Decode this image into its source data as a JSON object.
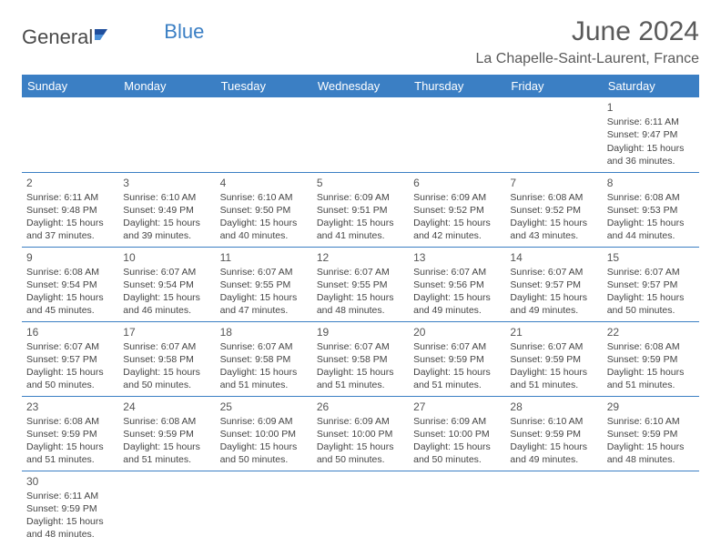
{
  "logo": {
    "part1": "General",
    "part2": "Blue"
  },
  "title": "June 2024",
  "location": "La Chapelle-Saint-Laurent, France",
  "colors": {
    "header_bg": "#3b7fc4",
    "header_text": "#ffffff",
    "border": "#3b7fc4",
    "text": "#444444"
  },
  "weekdays": [
    "Sunday",
    "Monday",
    "Tuesday",
    "Wednesday",
    "Thursday",
    "Friday",
    "Saturday"
  ],
  "weeks": [
    [
      null,
      null,
      null,
      null,
      null,
      null,
      {
        "n": "1",
        "sr": "6:11 AM",
        "ss": "9:47 PM",
        "dl": "15 hours and 36 minutes."
      }
    ],
    [
      {
        "n": "2",
        "sr": "6:11 AM",
        "ss": "9:48 PM",
        "dl": "15 hours and 37 minutes."
      },
      {
        "n": "3",
        "sr": "6:10 AM",
        "ss": "9:49 PM",
        "dl": "15 hours and 39 minutes."
      },
      {
        "n": "4",
        "sr": "6:10 AM",
        "ss": "9:50 PM",
        "dl": "15 hours and 40 minutes."
      },
      {
        "n": "5",
        "sr": "6:09 AM",
        "ss": "9:51 PM",
        "dl": "15 hours and 41 minutes."
      },
      {
        "n": "6",
        "sr": "6:09 AM",
        "ss": "9:52 PM",
        "dl": "15 hours and 42 minutes."
      },
      {
        "n": "7",
        "sr": "6:08 AM",
        "ss": "9:52 PM",
        "dl": "15 hours and 43 minutes."
      },
      {
        "n": "8",
        "sr": "6:08 AM",
        "ss": "9:53 PM",
        "dl": "15 hours and 44 minutes."
      }
    ],
    [
      {
        "n": "9",
        "sr": "6:08 AM",
        "ss": "9:54 PM",
        "dl": "15 hours and 45 minutes."
      },
      {
        "n": "10",
        "sr": "6:07 AM",
        "ss": "9:54 PM",
        "dl": "15 hours and 46 minutes."
      },
      {
        "n": "11",
        "sr": "6:07 AM",
        "ss": "9:55 PM",
        "dl": "15 hours and 47 minutes."
      },
      {
        "n": "12",
        "sr": "6:07 AM",
        "ss": "9:55 PM",
        "dl": "15 hours and 48 minutes."
      },
      {
        "n": "13",
        "sr": "6:07 AM",
        "ss": "9:56 PM",
        "dl": "15 hours and 49 minutes."
      },
      {
        "n": "14",
        "sr": "6:07 AM",
        "ss": "9:57 PM",
        "dl": "15 hours and 49 minutes."
      },
      {
        "n": "15",
        "sr": "6:07 AM",
        "ss": "9:57 PM",
        "dl": "15 hours and 50 minutes."
      }
    ],
    [
      {
        "n": "16",
        "sr": "6:07 AM",
        "ss": "9:57 PM",
        "dl": "15 hours and 50 minutes."
      },
      {
        "n": "17",
        "sr": "6:07 AM",
        "ss": "9:58 PM",
        "dl": "15 hours and 50 minutes."
      },
      {
        "n": "18",
        "sr": "6:07 AM",
        "ss": "9:58 PM",
        "dl": "15 hours and 51 minutes."
      },
      {
        "n": "19",
        "sr": "6:07 AM",
        "ss": "9:58 PM",
        "dl": "15 hours and 51 minutes."
      },
      {
        "n": "20",
        "sr": "6:07 AM",
        "ss": "9:59 PM",
        "dl": "15 hours and 51 minutes."
      },
      {
        "n": "21",
        "sr": "6:07 AM",
        "ss": "9:59 PM",
        "dl": "15 hours and 51 minutes."
      },
      {
        "n": "22",
        "sr": "6:08 AM",
        "ss": "9:59 PM",
        "dl": "15 hours and 51 minutes."
      }
    ],
    [
      {
        "n": "23",
        "sr": "6:08 AM",
        "ss": "9:59 PM",
        "dl": "15 hours and 51 minutes."
      },
      {
        "n": "24",
        "sr": "6:08 AM",
        "ss": "9:59 PM",
        "dl": "15 hours and 51 minutes."
      },
      {
        "n": "25",
        "sr": "6:09 AM",
        "ss": "10:00 PM",
        "dl": "15 hours and 50 minutes."
      },
      {
        "n": "26",
        "sr": "6:09 AM",
        "ss": "10:00 PM",
        "dl": "15 hours and 50 minutes."
      },
      {
        "n": "27",
        "sr": "6:09 AM",
        "ss": "10:00 PM",
        "dl": "15 hours and 50 minutes."
      },
      {
        "n": "28",
        "sr": "6:10 AM",
        "ss": "9:59 PM",
        "dl": "15 hours and 49 minutes."
      },
      {
        "n": "29",
        "sr": "6:10 AM",
        "ss": "9:59 PM",
        "dl": "15 hours and 48 minutes."
      }
    ],
    [
      {
        "n": "30",
        "sr": "6:11 AM",
        "ss": "9:59 PM",
        "dl": "15 hours and 48 minutes."
      },
      null,
      null,
      null,
      null,
      null,
      null
    ]
  ],
  "labels": {
    "sunrise": "Sunrise:",
    "sunset": "Sunset:",
    "daylight": "Daylight:"
  }
}
